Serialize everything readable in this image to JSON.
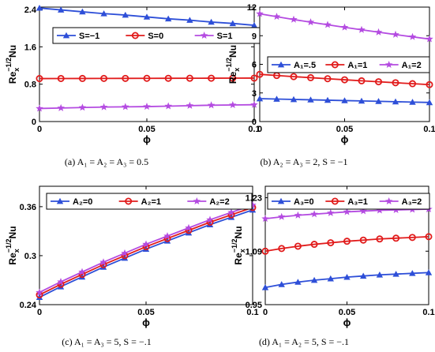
{
  "series_colors": [
    "#2e4fd8",
    "#e11b1b",
    "#b44be1"
  ],
  "chart_data": [
    {
      "type": "line",
      "caption": "(a) A₁ = A₂ = A₃ = 0.5",
      "xlabel": "ϕ",
      "ylabel_main": "Re",
      "ylabel_sub": "x",
      "ylabel_sup": "−1/2",
      "ylabel_tail": "Nu",
      "xlim": [
        0,
        0.1
      ],
      "ylim": [
        0,
        2.45
      ],
      "xticks": [
        0,
        0.05,
        0.1
      ],
      "xtick_labels": [
        "0",
        "0.05",
        "0.1"
      ],
      "yticks": [
        0,
        0.8,
        1.6,
        2.4
      ],
      "ytick_labels": [
        "0",
        "0.8",
        "1.6",
        "2.4"
      ],
      "legend_position": "top",
      "x": [
        0,
        0.01,
        0.02,
        0.03,
        0.04,
        0.05,
        0.06,
        0.07,
        0.08,
        0.09,
        0.1
      ],
      "series": [
        {
          "name": "S=−1",
          "marker": "triangle",
          "values": [
            2.43,
            2.39,
            2.35,
            2.31,
            2.28,
            2.24,
            2.2,
            2.17,
            2.13,
            2.1,
            2.06
          ]
        },
        {
          "name": "S=0",
          "marker": "circle",
          "values": [
            0.92,
            0.921,
            0.922,
            0.923,
            0.924,
            0.925,
            0.926,
            0.927,
            0.928,
            0.929,
            0.93
          ]
        },
        {
          "name": "S=1",
          "marker": "star",
          "values": [
            0.28,
            0.29,
            0.3,
            0.31,
            0.315,
            0.32,
            0.33,
            0.34,
            0.35,
            0.355,
            0.36
          ]
        }
      ]
    },
    {
      "type": "line",
      "caption": "(b) A₂ = A₃ = 2, S = −1",
      "xlabel": "ϕ",
      "ylabel_main": "Re",
      "ylabel_sub": "x",
      "ylabel_sup": "−1/2",
      "ylabel_tail": "Nu",
      "xlim": [
        0,
        0.1
      ],
      "ylim": [
        0,
        12
      ],
      "xticks": [
        0,
        0.05,
        0.1
      ],
      "xtick_labels": [
        "0",
        "0.05",
        "0.1"
      ],
      "yticks": [
        0,
        3,
        6,
        9,
        12
      ],
      "ytick_labels": [
        "0",
        "3",
        "6",
        "9",
        "12"
      ],
      "legend_position": "middle",
      "x": [
        0,
        0.01,
        0.02,
        0.03,
        0.04,
        0.05,
        0.06,
        0.07,
        0.08,
        0.09,
        0.1
      ],
      "series": [
        {
          "name": "A₁=.5",
          "marker": "triangle",
          "values": [
            2.4,
            2.36,
            2.32,
            2.28,
            2.24,
            2.2,
            2.16,
            2.12,
            2.08,
            2.04,
            2.0
          ]
        },
        {
          "name": "A₁=1",
          "marker": "circle",
          "values": [
            4.95,
            4.83,
            4.71,
            4.6,
            4.49,
            4.38,
            4.27,
            4.17,
            4.07,
            3.97,
            3.87
          ]
        },
        {
          "name": "A₁=2",
          "marker": "star",
          "values": [
            11.3,
            11.0,
            10.7,
            10.42,
            10.15,
            9.88,
            9.62,
            9.37,
            9.12,
            8.88,
            8.65
          ]
        }
      ]
    },
    {
      "type": "line",
      "caption": "(c) A₁ = A₃ = 5, S = −.1",
      "xlabel": "ϕ",
      "ylabel_main": "Re",
      "ylabel_sub": "x",
      "ylabel_sup": "−1/2",
      "ylabel_tail": "Nu",
      "xlim": [
        0,
        0.1
      ],
      "ylim": [
        0.24,
        0.385
      ],
      "xticks": [
        0,
        0.05,
        0.1
      ],
      "xtick_labels": [
        "0",
        "0.05",
        "0.1"
      ],
      "yticks": [
        0.24,
        0.3,
        0.36
      ],
      "ytick_labels": [
        "0.24",
        "0.3",
        "0.36"
      ],
      "legend_position": "top",
      "x": [
        0,
        0.01,
        0.02,
        0.03,
        0.04,
        0.05,
        0.06,
        0.07,
        0.08,
        0.09,
        0.1
      ],
      "series": [
        {
          "name": "A₂=0",
          "marker": "triangle",
          "values": [
            0.249,
            0.262,
            0.274,
            0.286,
            0.297,
            0.308,
            0.318,
            0.328,
            0.338,
            0.347,
            0.356
          ]
        },
        {
          "name": "A₂=1",
          "marker": "circle",
          "values": [
            0.252,
            0.265,
            0.277,
            0.289,
            0.3,
            0.311,
            0.321,
            0.331,
            0.341,
            0.35,
            0.359
          ]
        },
        {
          "name": "A₂=2",
          "marker": "star",
          "values": [
            0.255,
            0.268,
            0.28,
            0.292,
            0.303,
            0.314,
            0.324,
            0.334,
            0.344,
            0.353,
            0.362
          ]
        }
      ]
    },
    {
      "type": "line",
      "caption": "(d) A₁ = A₂ = 5, S = −.1",
      "xlabel": "ϕ",
      "ylabel_main": "Re",
      "ylabel_sub": "x",
      "ylabel_sup": "−1/2",
      "ylabel_tail": "Nu",
      "xlim": [
        0,
        0.1
      ],
      "ylim": [
        0.95,
        1.26
      ],
      "xticks": [
        0,
        0.05,
        0.1
      ],
      "xtick_labels": [
        "0",
        "0.05",
        "0.1"
      ],
      "yticks": [
        0.95,
        1.09,
        1.23
      ],
      "ytick_labels": [
        "0.95",
        "1.09",
        "1.23"
      ],
      "legend_position": "top",
      "x": [
        0,
        0.01,
        0.02,
        0.03,
        0.04,
        0.05,
        0.06,
        0.07,
        0.08,
        0.09,
        0.1
      ],
      "series": [
        {
          "name": "A₃=0",
          "marker": "triangle",
          "values": [
            0.995,
            1.003,
            1.009,
            1.014,
            1.018,
            1.022,
            1.025,
            1.028,
            1.03,
            1.032,
            1.034
          ]
        },
        {
          "name": "A₃=1",
          "marker": "circle",
          "values": [
            1.09,
            1.097,
            1.103,
            1.108,
            1.112,
            1.116,
            1.119,
            1.122,
            1.124,
            1.126,
            1.128
          ]
        },
        {
          "name": "A₃=2",
          "marker": "star",
          "values": [
            1.175,
            1.18,
            1.184,
            1.187,
            1.19,
            1.193,
            1.195,
            1.197,
            1.198,
            1.199,
            1.2
          ]
        }
      ]
    }
  ]
}
